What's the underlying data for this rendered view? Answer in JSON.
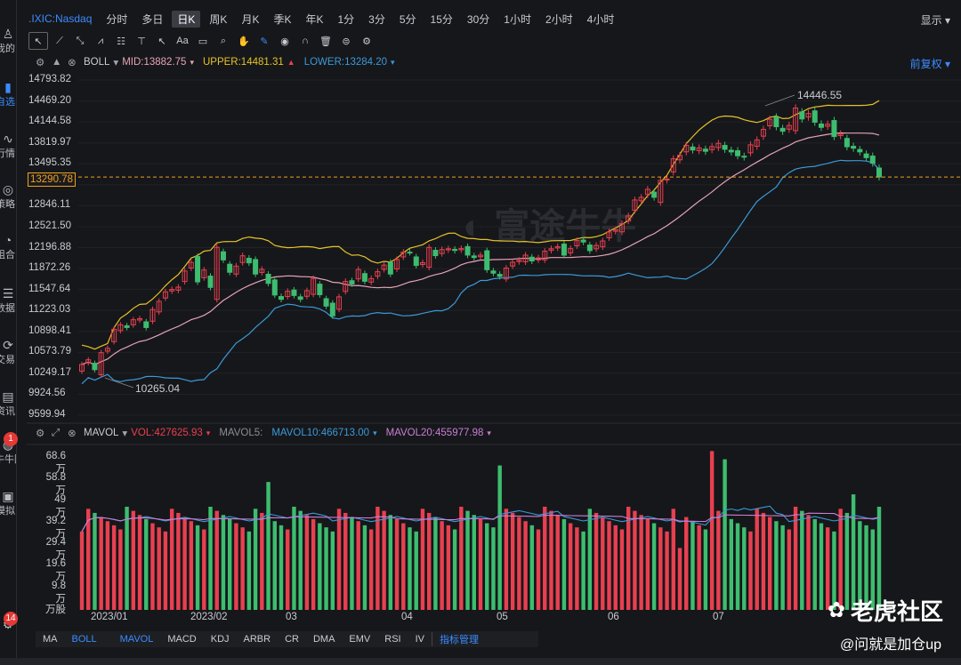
{
  "sidebar": {
    "items": [
      {
        "label": "我的",
        "icon": "user-icon"
      },
      {
        "label": "自选",
        "icon": "watchlist-icon",
        "active": true
      },
      {
        "label": "行情",
        "icon": "market-icon"
      },
      {
        "label": "策略",
        "icon": "bulb-icon"
      },
      {
        "label": "组合",
        "icon": "pie-icon"
      },
      {
        "label": "数据",
        "icon": "database-icon"
      },
      {
        "label": "交易",
        "icon": "trade-icon"
      },
      {
        "label": "资讯",
        "icon": "news-icon"
      },
      {
        "label": "牛牛圈",
        "icon": "community-icon",
        "badge": "1"
      },
      {
        "label": "模拟",
        "icon": "gamepad-icon"
      },
      {
        "label": "",
        "icon": "settings-icon",
        "badge": "14"
      }
    ]
  },
  "header": {
    "symbol": ".IXIC:Nasdaq",
    "timeframes": [
      "分时",
      "多日",
      "日K",
      "周K",
      "月K",
      "季K",
      "年K",
      "1分",
      "3分",
      "5分",
      "15分",
      "30分",
      "1小时",
      "2小时",
      "4小时"
    ],
    "active_timeframe": "日K",
    "show_label": "显示"
  },
  "toolbar": {
    "tools": [
      "cursor-icon",
      "line-tool-icon",
      "trend-tool-icon",
      "wave-tool-icon",
      "fib-tool-icon",
      "horizontal-line-icon",
      "arrow-tool-icon",
      "text-tool-icon",
      "comment-icon",
      "zoom-icon",
      "hand-icon",
      "pen-icon",
      "eye-icon",
      "magnet-icon",
      "trash-icon",
      "refresh-icon",
      "gear-icon"
    ],
    "text_tool_label": "Aa"
  },
  "main_indicator": {
    "name": "BOLL",
    "mid": "MID:13882.75",
    "upper": "UPPER:14481.31",
    "lower": "LOWER:13284.20",
    "adjust_label": "前复权"
  },
  "price_axis": [
    "14793.82",
    "14469.20",
    "14144.58",
    "13819.97",
    "13495.35",
    "",
    "12846.11",
    "12521.50",
    "12196.88",
    "11872.26",
    "11547.64",
    "11223.03",
    "10898.41",
    "10573.79",
    "10249.17",
    "9924.56",
    "9599.94"
  ],
  "current_price": "13290.78",
  "annotations": {
    "high": "14446.55",
    "low": "10265.04"
  },
  "vol_indicator": {
    "name": "MAVOL",
    "vol": "VOL:427625.93",
    "mavol5": "MAVOL5:",
    "mavol10": "MAVOL10:466713.00",
    "mavol20": "MAVOL20:455977.98"
  },
  "vol_axis": [
    "68.6万",
    "58.8万",
    "49万",
    "39.2万",
    "29.4万",
    "19.6万",
    "9.8万",
    "万股"
  ],
  "x_axis": [
    "2023/01",
    "2023/02",
    "03",
    "04",
    "05",
    "06",
    "07"
  ],
  "bottom_tabs": [
    "MA",
    "BOLL",
    "MAVOL",
    "MACD",
    "KDJ",
    "ARBR",
    "CR",
    "DMA",
    "EMV",
    "RSI",
    "IV",
    "指标管理"
  ],
  "active_tabs": [
    "BOLL",
    "MAVOL"
  ],
  "watermark": {
    "brand": "老虎社区",
    "user": "@问就是加仓up"
  },
  "colors": {
    "up": "#e84050",
    "down": "#3dbd6f",
    "upper": "#e6c229",
    "mid": "#e6a3b8",
    "lower": "#3a9ad9",
    "accent": "#3b8cff",
    "current": "#f0a020"
  },
  "chart_data": {
    "type": "candlestick",
    "title": ".IXIC:Nasdaq",
    "ylim": [
      9599.94,
      14793.82
    ],
    "x_start": "2023/01",
    "closes": [
      10386,
      10458,
      10305,
      10569,
      10636,
      10931,
      11001,
      10958,
      11079,
      11095,
      10958,
      11238,
      11364,
      11512,
      11548,
      11584,
      11834,
      11968,
      11666,
      11849,
      11580,
      12200,
      12006,
      11815,
      11910,
      12070,
      11960,
      11787,
      11860,
      11642,
      11462,
      11395,
      11520,
      11455,
      11395,
      11530,
      11718,
      11467,
      11290,
      11138,
      11434,
      11672,
      11633,
      11858,
      11675,
      11717,
      11823,
      11926,
      11787,
      12013,
      12126,
      12124,
      11920,
      11963,
      12200,
      12072,
      12166,
      12179,
      12153,
      12182,
      12081,
      12043,
      12080,
      11854,
      11800,
      11750,
      11880,
      11970,
      12000,
      12080,
      11990,
      12038,
      12141,
      12180,
      12212,
      12080,
      12181,
      12306,
      12284,
      12150,
      12230,
      12300,
      12440,
      12470,
      12567,
      12688,
      12935,
      12976,
      13100,
      12976,
      13238,
      13259,
      13573,
      13626,
      13782,
      13709,
      13741,
      13689,
      13762,
      13813,
      13720,
      13680,
      13620,
      13600,
      13790,
      13866,
      14030,
      14185,
      14070,
      14000,
      14090,
      14360,
      14190,
      14275,
      14140,
      14060,
      14109,
      13918,
      13958,
      13760,
      13737,
      13680,
      13590,
      13505,
      13291
    ],
    "volume_unit": "万股",
    "vol_axis_max": 78
  }
}
